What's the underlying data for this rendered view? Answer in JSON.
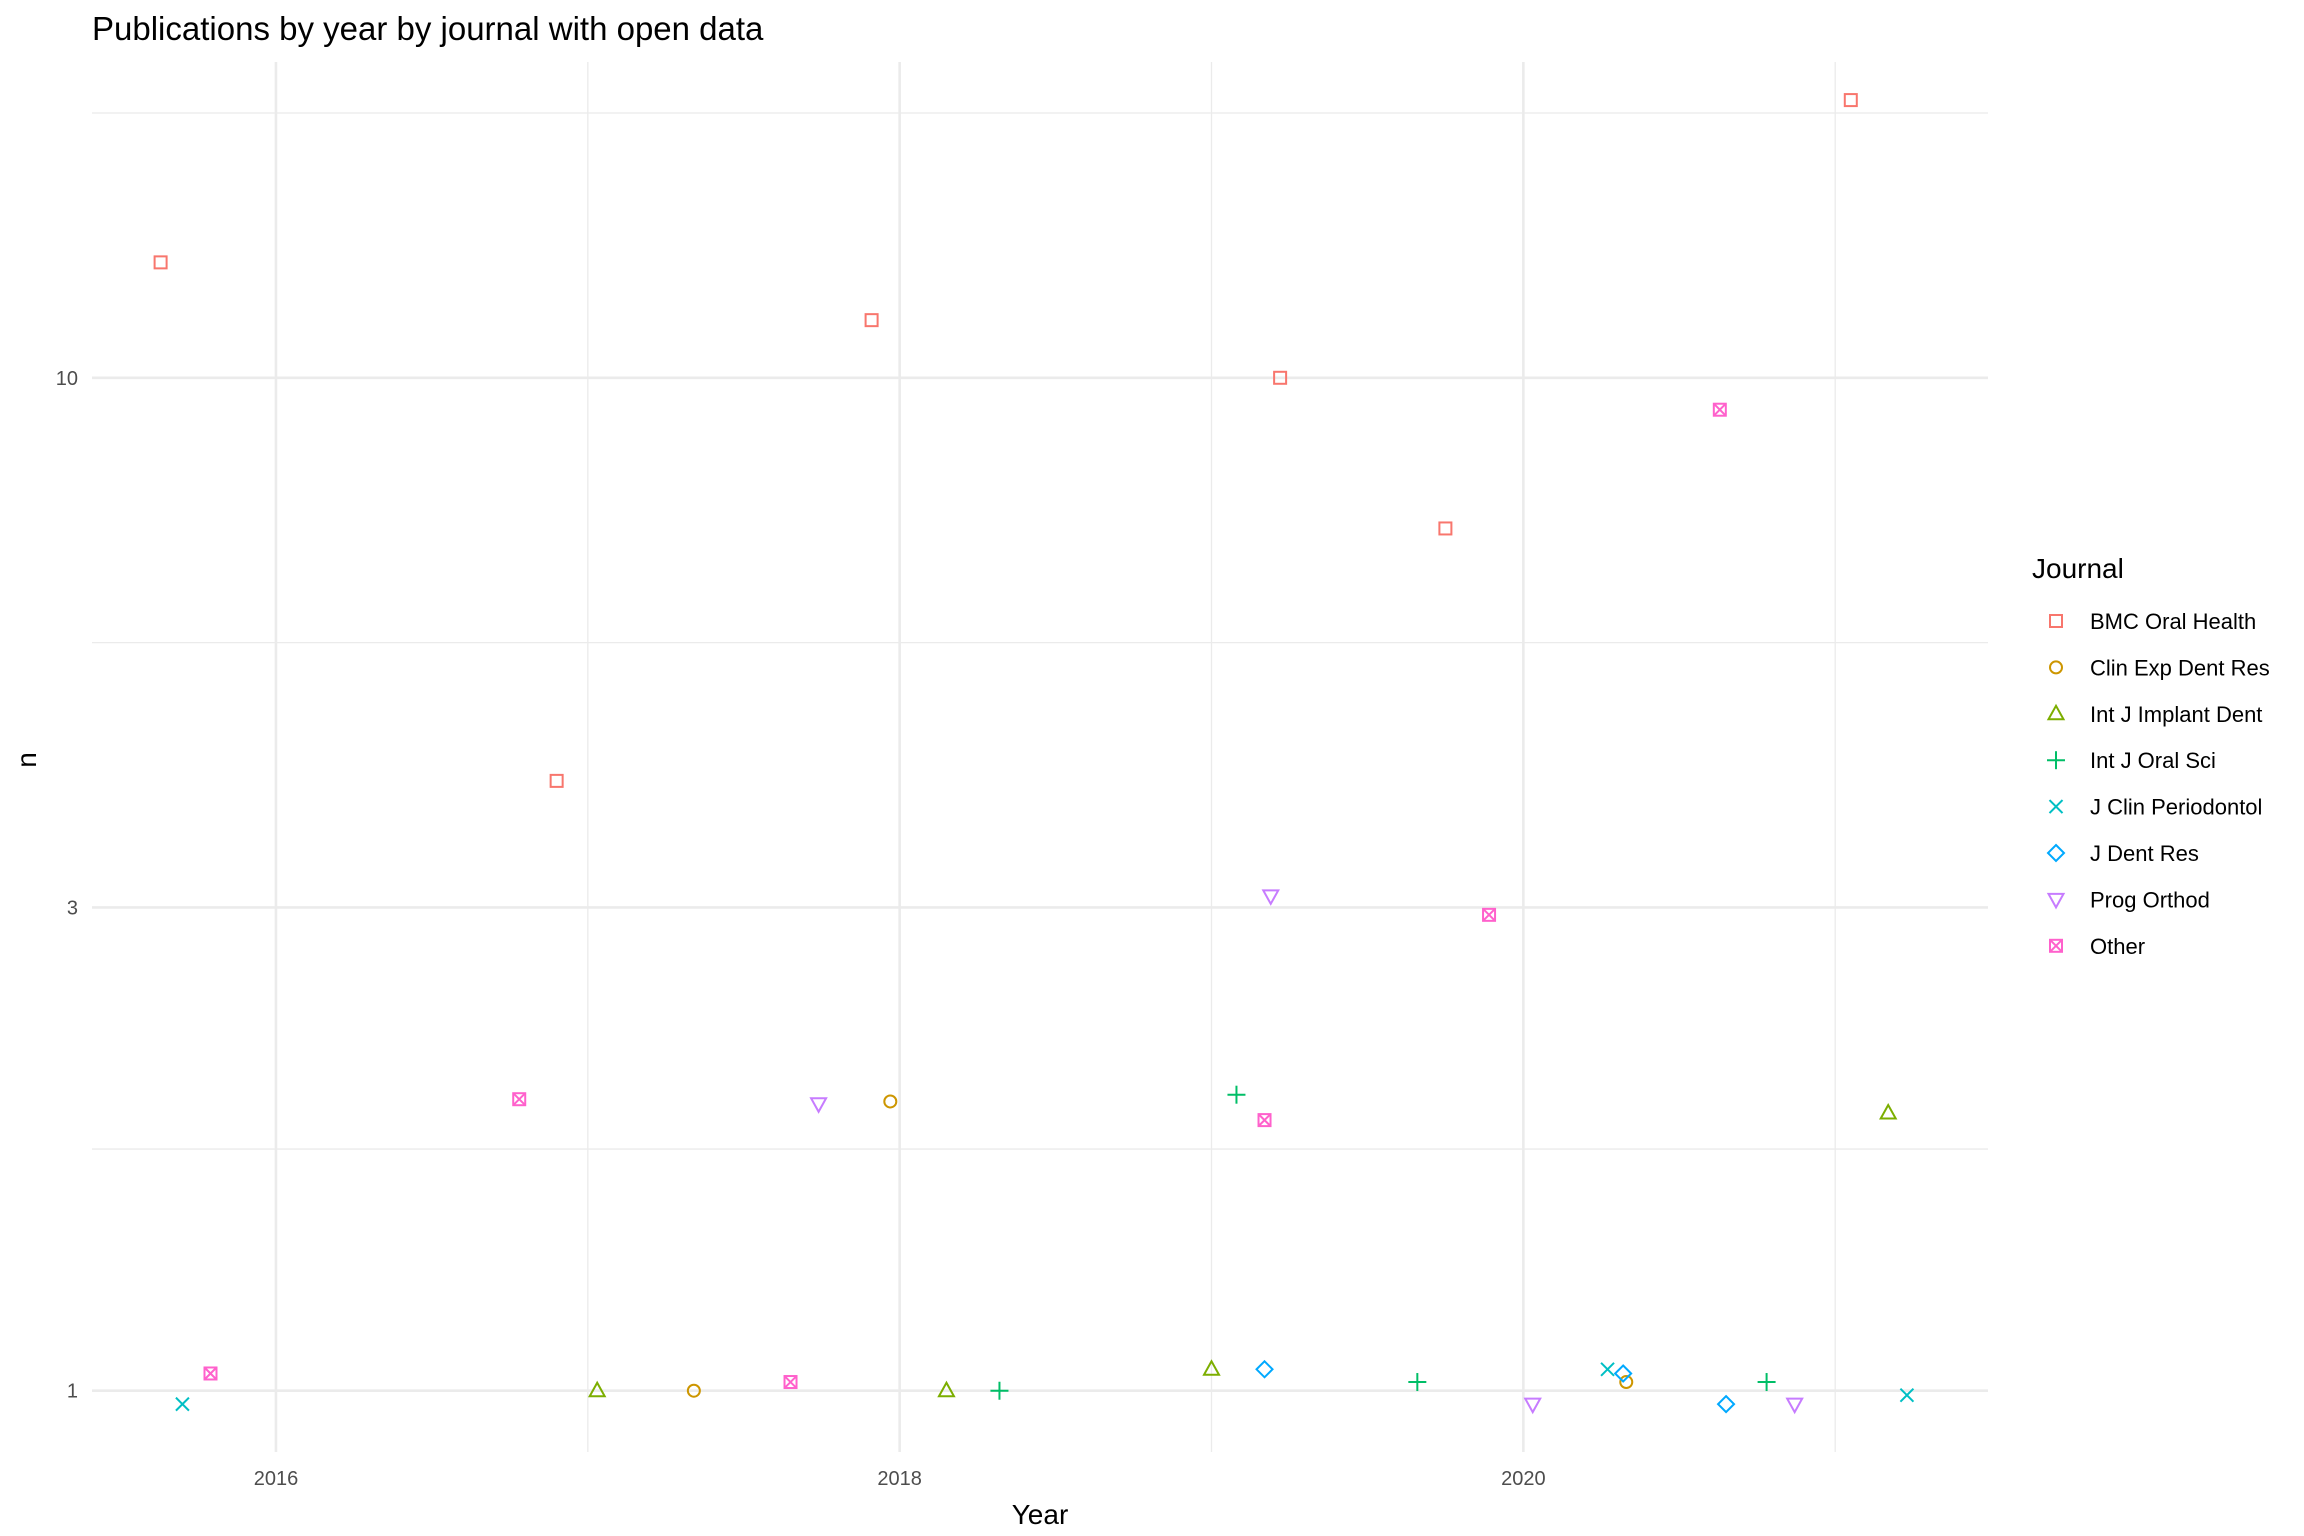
{
  "chart_data": {
    "type": "scatter",
    "title": "Publications by year by journal with open data",
    "xlabel": "Year",
    "ylabel": "n",
    "x_scale": "linear",
    "y_scale": "log10",
    "xlim": [
      2015.41,
      2021.49
    ],
    "ylim": [
      0.87,
      20.5
    ],
    "x_ticks": [
      2016,
      2018,
      2020
    ],
    "x_tick_labels": [
      "2016",
      "2018",
      "2020"
    ],
    "y_ticks": [
      1,
      3,
      10
    ],
    "y_tick_labels": [
      "1",
      "3",
      "10"
    ],
    "grid": true,
    "legend_title": "Journal",
    "legend_position": "right",
    "series": [
      {
        "name": "BMC Oral Health",
        "color": "#F8766D",
        "shape": "square-open",
        "points": [
          [
            2015.63,
            13
          ],
          [
            2016.9,
            4
          ],
          [
            2017.91,
            11.4
          ],
          [
            2019.22,
            10
          ],
          [
            2019.75,
            7.1
          ],
          [
            2021.05,
            18.8
          ]
        ]
      },
      {
        "name": "Clin Exp Dent Res",
        "color": "#CD9600",
        "shape": "circle-open",
        "points": [
          [
            2017.34,
            1
          ],
          [
            2017.97,
            1.93
          ],
          [
            2020.33,
            1.02
          ]
        ]
      },
      {
        "name": "Int J Implant Dent",
        "color": "#7CAE00",
        "shape": "triangle-open",
        "points": [
          [
            2017.03,
            1
          ],
          [
            2018.15,
            1
          ],
          [
            2019,
            1.05
          ],
          [
            2021.17,
            1.88
          ]
        ]
      },
      {
        "name": "Int J Oral Sci",
        "color": "#00BE67",
        "shape": "plus",
        "points": [
          [
            2018.32,
            1
          ],
          [
            2019.08,
            1.96
          ],
          [
            2019.66,
            1.02
          ],
          [
            2020.78,
            1.02
          ]
        ]
      },
      {
        "name": "J Clin Periodontol",
        "color": "#00BFC4",
        "shape": "cross",
        "points": [
          [
            2015.7,
            0.97
          ],
          [
            2020.27,
            1.05
          ],
          [
            2021.23,
            0.99
          ]
        ]
      },
      {
        "name": "J Dent Res",
        "color": "#00A9FF",
        "shape": "diamond-open",
        "points": [
          [
            2019.17,
            1.05
          ],
          [
            2020.32,
            1.04
          ],
          [
            2020.65,
            0.97
          ]
        ]
      },
      {
        "name": "Prog Orthod",
        "color": "#C77CFF",
        "shape": "triangle-down-open",
        "points": [
          [
            2017.74,
            1.92
          ],
          [
            2019.19,
            3.08
          ],
          [
            2020.03,
            0.97
          ],
          [
            2020.87,
            0.97
          ]
        ]
      },
      {
        "name": "Other",
        "color": "#FF61CC",
        "shape": "square-cross",
        "points": [
          [
            2015.79,
            1.04
          ],
          [
            2016.78,
            1.94
          ],
          [
            2017.65,
            1.02
          ],
          [
            2019.17,
            1.85
          ],
          [
            2019.89,
            2.95
          ],
          [
            2020.63,
            9.3
          ]
        ]
      }
    ]
  }
}
